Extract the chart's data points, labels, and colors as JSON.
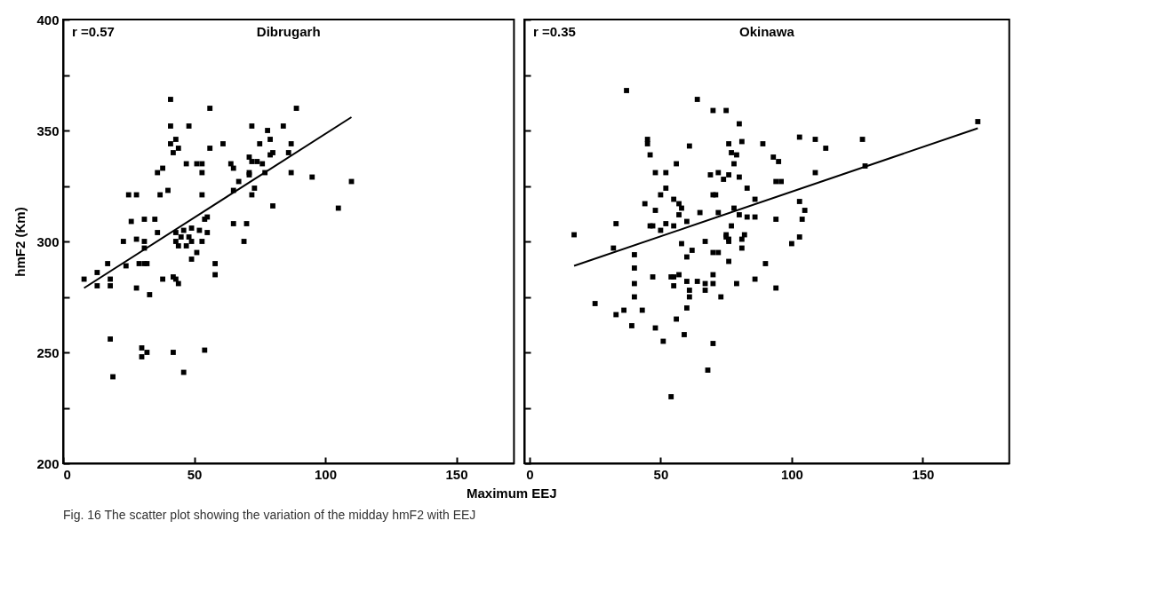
{
  "chart_data": [
    {
      "type": "scatter",
      "ylabel": "hmF2 (Km)",
      "xlabel": "Maximum EEJ",
      "annotations": [
        "r =0.57",
        "Dibrugarh",
        "Fig. 16 The scatter plot showing the variation of the midday hmF2 with EEJ"
      ],
      "xlim": [
        0,
        172
      ],
      "xticks": [
        0,
        50,
        100,
        150
      ],
      "ylim": [
        200,
        400
      ],
      "yticks": [
        200,
        {
          "value": 225,
          "label": null
        },
        250,
        {
          "value": 275,
          "label": null
        },
        300,
        {
          "value": 325,
          "label": null
        },
        350,
        {
          "value": 375,
          "label": null
        },
        400
      ],
      "series": [
        {
          "marker": "square",
          "color": "#000000",
          "x": [
            41,
            56,
            41,
            48,
            43,
            41,
            44,
            42,
            56,
            61,
            47,
            51,
            53,
            53,
            36,
            38,
            64,
            65,
            67,
            65,
            40,
            37,
            25,
            28,
            53,
            26,
            31,
            35,
            36,
            54,
            55,
            55,
            65,
            70,
            23,
            28,
            31,
            31,
            43,
            46,
            49,
            52,
            43,
            44,
            45,
            47,
            48,
            49,
            53,
            69,
            51,
            49,
            17,
            24,
            29,
            31,
            32,
            58,
            58,
            13,
            8,
            13,
            18,
            18,
            38,
            42,
            43,
            44,
            28,
            33,
            18,
            30,
            30,
            32,
            42,
            54,
            19,
            46,
            89,
            72,
            78,
            84,
            79,
            75,
            87,
            71,
            72,
            74,
            76,
            79,
            80,
            86,
            71,
            71,
            77,
            87,
            95,
            110,
            73,
            72,
            80,
            105
          ],
          "values": [
            364,
            360,
            352,
            352,
            346,
            344,
            342,
            340,
            342,
            344,
            335,
            335,
            335,
            331,
            331,
            333,
            335,
            333,
            327,
            323,
            323,
            321,
            321,
            321,
            321,
            309,
            310,
            310,
            304,
            310,
            311,
            304,
            308,
            308,
            300,
            301,
            300,
            297,
            304,
            305,
            306,
            305,
            300,
            298,
            302,
            298,
            302,
            300,
            300,
            300,
            295,
            292,
            290,
            289,
            290,
            290,
            290,
            290,
            285,
            286,
            283,
            280,
            283,
            280,
            283,
            284,
            283,
            281,
            279,
            276,
            256,
            252,
            248,
            250,
            250,
            251,
            239,
            241,
            360,
            352,
            350,
            352,
            346,
            344,
            344,
            338,
            336,
            336,
            335,
            339,
            340,
            340,
            331,
            330,
            331,
            331,
            329,
            327,
            324,
            321,
            316,
            315
          ]
        },
        {
          "type": "line",
          "color": "#000000",
          "x": [
            8,
            110
          ],
          "values": [
            279,
            356
          ]
        }
      ]
    },
    {
      "type": "scatter",
      "tick_labels": "x",
      "annotations": [
        "r =0.35",
        "Okinawa"
      ],
      "xlim": [
        -2,
        183
      ],
      "xticks": [
        0,
        50,
        100,
        150
      ],
      "ylim": [
        200,
        400
      ],
      "yticks": [
        200,
        {
          "value": 225,
          "label": null
        },
        250,
        {
          "value": 275,
          "label": null
        },
        300,
        {
          "value": 325,
          "label": null
        },
        350,
        {
          "value": 375,
          "label": null
        },
        400
      ],
      "series": [
        {
          "marker": "square",
          "color": "#000000",
          "x": [
            37,
            33,
            17,
            32,
            40,
            40,
            40,
            40,
            25,
            33,
            36,
            39,
            43,
            64,
            70,
            75,
            80,
            45,
            45,
            46,
            61,
            76,
            81,
            89,
            103,
            109,
            113,
            77,
            79,
            93,
            95,
            56,
            78,
            48,
            52,
            69,
            72,
            76,
            74,
            80,
            109,
            94,
            96,
            52,
            83,
            50,
            70,
            71,
            55,
            86,
            44,
            57,
            58,
            57,
            48,
            65,
            72,
            78,
            80,
            83,
            86,
            103,
            105,
            104,
            94,
            60,
            77,
            46,
            47,
            52,
            50,
            55,
            75,
            75,
            76,
            76,
            82,
            81,
            58,
            67,
            62,
            60,
            70,
            72,
            81,
            100,
            103,
            76,
            90,
            47,
            54,
            55,
            57,
            60,
            64,
            67,
            67,
            70,
            70,
            55,
            61,
            61,
            73,
            79,
            86,
            94,
            60,
            56,
            48,
            59,
            51,
            70,
            68,
            54,
            127,
            128,
            171
          ],
          "values": [
            368,
            308,
            303,
            297,
            294,
            288,
            281,
            275,
            272,
            267,
            269,
            262,
            269,
            364,
            359,
            359,
            353,
            346,
            344,
            339,
            343,
            344,
            345,
            344,
            347,
            346,
            342,
            340,
            339,
            338,
            336,
            335,
            335,
            331,
            331,
            330,
            331,
            330,
            328,
            329,
            331,
            327,
            327,
            324,
            324,
            321,
            321,
            321,
            319,
            319,
            317,
            317,
            315,
            312,
            314,
            313,
            313,
            315,
            312,
            311,
            311,
            318,
            314,
            310,
            310,
            309,
            307,
            307,
            307,
            308,
            305,
            307,
            303,
            302,
            300,
            301,
            303,
            301,
            299,
            300,
            296,
            293,
            295,
            295,
            297,
            299,
            302,
            291,
            290,
            284,
            284,
            284,
            285,
            282,
            282,
            281,
            278,
            285,
            281,
            280,
            278,
            275,
            275,
            281,
            283,
            279,
            270,
            265,
            261,
            258,
            255,
            254,
            242,
            230,
            346,
            334,
            354
          ]
        },
        {
          "type": "line",
          "color": "#000000",
          "x": [
            17,
            171
          ],
          "values": [
            289,
            351
          ]
        }
      ]
    }
  ]
}
